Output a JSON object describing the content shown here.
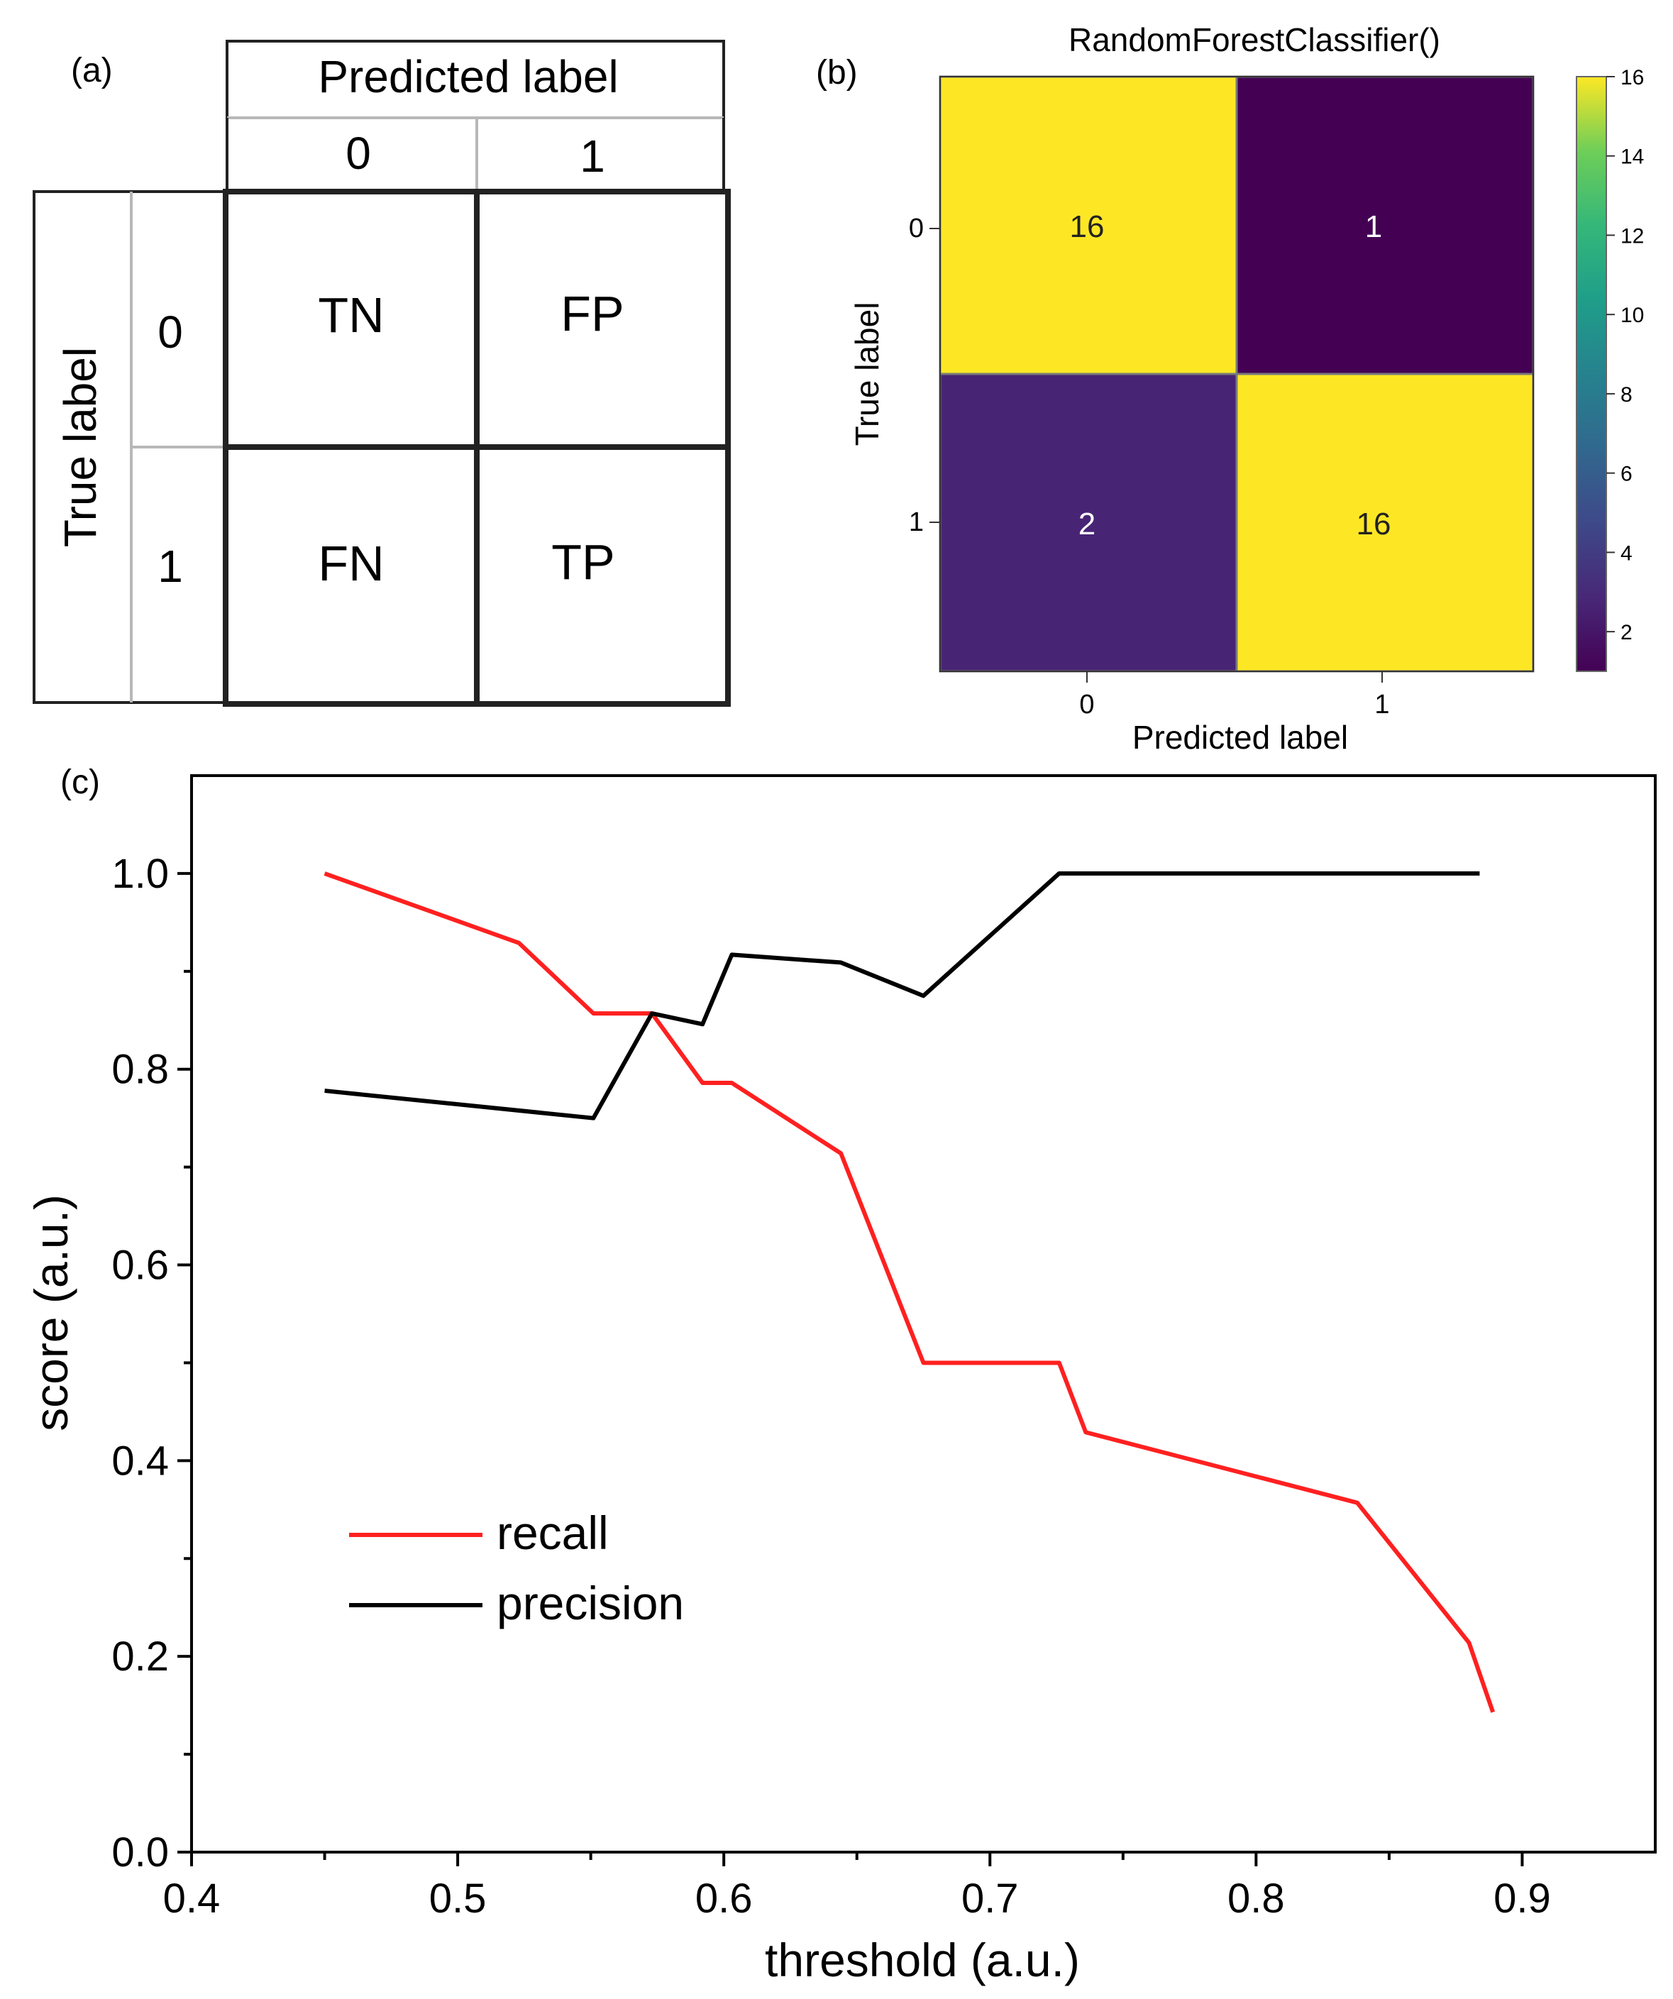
{
  "panel_a": {
    "tag": "(a)",
    "predicted_header": "Predicted label",
    "true_header": "True label",
    "col_labels": [
      "0",
      "1"
    ],
    "row_labels": [
      "0",
      "1"
    ],
    "cells": [
      [
        "TN",
        "FP"
      ],
      [
        "FN",
        "TP"
      ]
    ]
  },
  "panel_b": {
    "tag": "(b)",
    "title": "RandomForestClassifier()",
    "xlabel": "Predicted label",
    "ylabel": "True label",
    "col_labels": [
      "0",
      "1"
    ],
    "row_labels": [
      "0",
      "1"
    ],
    "colorbar_ticks": [
      "2",
      "4",
      "6",
      "8",
      "10",
      "12",
      "14",
      "16"
    ],
    "colors": {
      "high": "#fde725",
      "low": "#440154"
    }
  },
  "panel_c": {
    "tag": "(c)",
    "colors": {
      "recall": "#ff2020",
      "precision": "#000000"
    }
  },
  "chart_data": [
    {
      "type": "heatmap",
      "title": "RandomForestClassifier()",
      "xlabel": "Predicted label",
      "ylabel": "True label",
      "x_categories": [
        "0",
        "1"
      ],
      "y_categories": [
        "0",
        "1"
      ],
      "values": [
        [
          16,
          1
        ],
        [
          2,
          16
        ]
      ],
      "colorbar_range": [
        1,
        16
      ]
    },
    {
      "type": "line",
      "title": "",
      "xlabel": "threshold (a.u.)",
      "ylabel": "score (a.u.)",
      "xlim": [
        0.4,
        0.95
      ],
      "ylim": [
        0.0,
        1.1
      ],
      "xticks": [
        "0.4",
        "0.5",
        "0.6",
        "0.7",
        "0.8",
        "0.9"
      ],
      "yticks": [
        "0.0",
        "0.2",
        "0.4",
        "0.6",
        "0.8",
        "1.0"
      ],
      "legend": [
        "recall",
        "precision"
      ],
      "legend_position": "lower-left",
      "series": [
        {
          "name": "recall",
          "x": [
            0.45,
            0.523,
            0.551,
            0.573,
            0.592,
            0.603,
            0.644,
            0.675,
            0.705,
            0.726,
            0.736,
            0.838,
            0.88,
            0.889
          ],
          "y": [
            1.0,
            0.929,
            0.857,
            0.857,
            0.786,
            0.786,
            0.714,
            0.5,
            0.5,
            0.5,
            0.429,
            0.357,
            0.214,
            0.143
          ]
        },
        {
          "name": "precision",
          "x": [
            0.45,
            0.551,
            0.573,
            0.592,
            0.603,
            0.644,
            0.675,
            0.726,
            0.884
          ],
          "y": [
            0.778,
            0.75,
            0.857,
            0.846,
            0.917,
            0.909,
            0.875,
            1.0,
            1.0
          ]
        }
      ]
    }
  ]
}
